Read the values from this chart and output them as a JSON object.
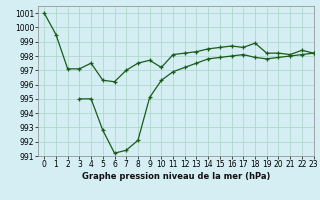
{
  "title": "Graphe pression niveau de la mer (hPa)",
  "bg_color": "#d4eef4",
  "grid_color": "#b0d8cc",
  "line_color": "#1a5c1a",
  "xlim": [
    -0.5,
    23
  ],
  "ylim": [
    991,
    1001.5
  ],
  "xticks": [
    0,
    1,
    2,
    3,
    4,
    5,
    6,
    7,
    8,
    9,
    10,
    11,
    12,
    13,
    14,
    15,
    16,
    17,
    18,
    19,
    20,
    21,
    22,
    23
  ],
  "yticks": [
    991,
    992,
    993,
    994,
    995,
    996,
    997,
    998,
    999,
    1000,
    1001
  ],
  "line1_x": [
    0,
    1,
    2,
    3,
    4,
    5,
    6,
    7,
    8,
    9,
    10,
    11,
    12,
    13,
    14,
    15,
    16,
    17,
    18,
    19,
    20,
    21,
    22,
    23
  ],
  "line1_y": [
    1001.0,
    999.5,
    997.1,
    997.1,
    997.5,
    996.3,
    996.2,
    997.0,
    997.5,
    997.7,
    997.2,
    998.1,
    998.2,
    998.3,
    998.5,
    998.6,
    998.7,
    998.6,
    998.9,
    998.2,
    998.2,
    998.1,
    998.4,
    998.2
  ],
  "line2_x": [
    3,
    4,
    5,
    6,
    7,
    8,
    9,
    10,
    11,
    12,
    13,
    14,
    15,
    16,
    17,
    18,
    19,
    20,
    21,
    22,
    23
  ],
  "line2_y": [
    995.0,
    995.0,
    992.8,
    991.2,
    991.4,
    992.1,
    995.1,
    996.3,
    996.9,
    997.2,
    997.5,
    997.8,
    997.9,
    998.0,
    998.1,
    997.9,
    997.8,
    997.9,
    998.0,
    998.1,
    998.2
  ],
  "tick_labelsize": 5.5,
  "xlabel_fontsize": 6.0
}
